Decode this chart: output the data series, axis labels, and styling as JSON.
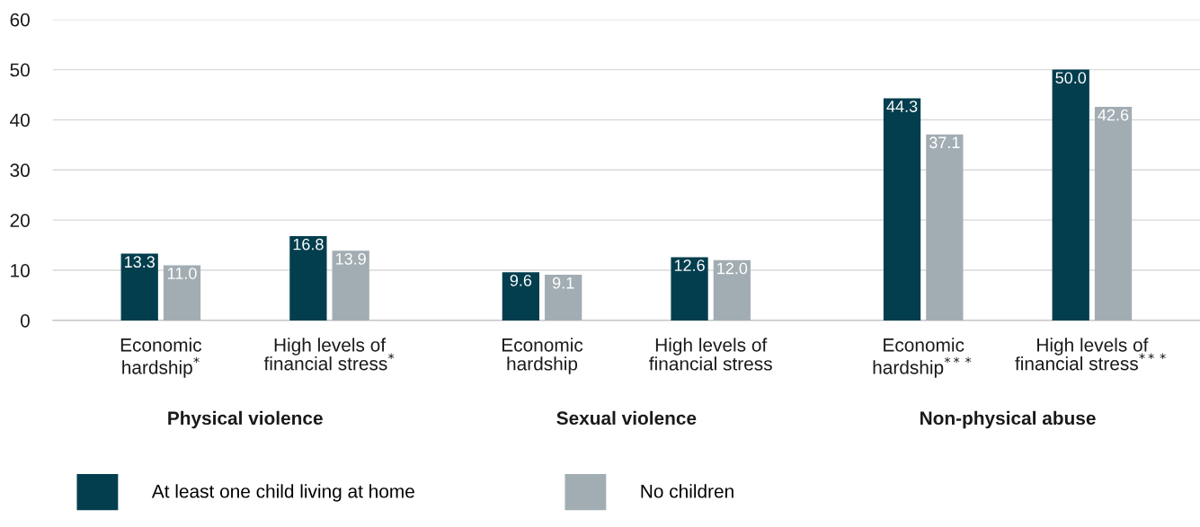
{
  "chart_data": {
    "type": "bar",
    "categories": [
      "Economic\nhardship$^{*}$",
      "High levels of\nfinancial stress$^{*}$",
      "Economic\nhardship",
      "High levels of\nfinancial stress",
      "Economic\nhardship$^{***}$",
      "High levels of\nfinancial stress$^{***}$"
    ],
    "series": [
      {
        "name": "At least one child living at home",
        "color": "#033e4e",
        "values": [
          13.3,
          16.8,
          9.6,
          12.6,
          44.3,
          50.0
        ],
        "value_labels": [
          "13.3",
          "16.8",
          "9.6",
          "12.6",
          "44.3",
          "50.0"
        ]
      },
      {
        "name": "No children",
        "color": "#a2adb3",
        "values": [
          11.0,
          13.9,
          9.1,
          12.0,
          37.1,
          42.6
        ],
        "value_labels": [
          "11.0",
          "13.9",
          "9.1",
          "12.0",
          "37.1",
          "42.6"
        ]
      }
    ],
    "annotations": [
      "Physical violence",
      "Sexual violence",
      "Non-physical abuse"
    ],
    "ylim": [
      0,
      60
    ],
    "yticks": [
      0,
      10,
      20,
      30,
      40,
      50,
      60
    ],
    "grid": "y",
    "legend": "bottom"
  }
}
